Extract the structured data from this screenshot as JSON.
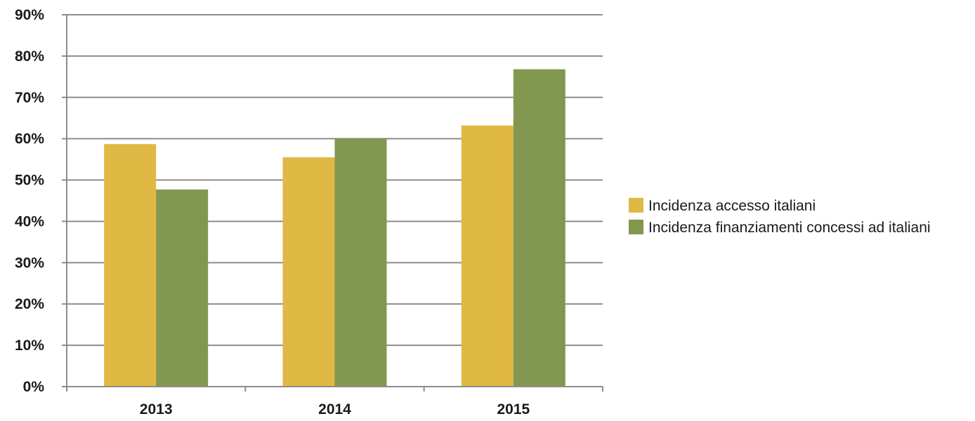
{
  "chart_data": {
    "type": "bar",
    "categories": [
      "2013",
      "2014",
      "2015"
    ],
    "series": [
      {
        "name": "Incidenza accesso italiani",
        "values": [
          58.7,
          55.5,
          63.2
        ],
        "color": "#e0b844"
      },
      {
        "name": "Incidenza finanziamenti concessi ad italiani",
        "values": [
          47.7,
          60.0,
          76.8
        ],
        "color": "#82974f"
      }
    ],
    "title": "",
    "xlabel": "",
    "ylabel": "",
    "ylim": [
      0,
      90
    ],
    "yticks": [
      "0%",
      "10%",
      "20%",
      "30%",
      "40%",
      "50%",
      "60%",
      "70%",
      "80%",
      "90%"
    ],
    "grid": true,
    "legend_position": "right"
  }
}
